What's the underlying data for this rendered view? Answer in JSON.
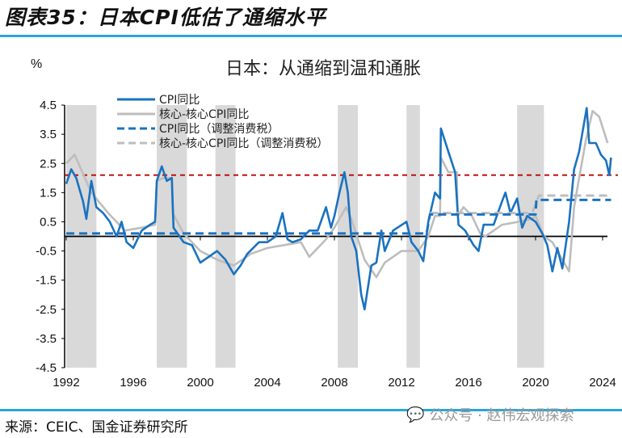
{
  "figure_title": "图表35：日本CPI低估了通缩水平",
  "source": "来源：CEIC、国金证券研究所",
  "watermark": "公众号 · 赵伟宏观探索",
  "colors": {
    "blue": "#1a72c0",
    "gray": "#bdbdbd",
    "red_ref": "#c00000",
    "band": "#d9d9d9",
    "rule": "#2aa6d4"
  },
  "chart_data": {
    "type": "line",
    "title": "日本：从通缩到温和通胀",
    "ylabel": "%",
    "ylim": [
      -4.5,
      4.5
    ],
    "yticks": [
      "4.5",
      "3.5",
      "2.5",
      "1.5",
      "0.5",
      "-0.5",
      "-1.5",
      "-2.5",
      "-3.5",
      "-4.5"
    ],
    "xlim": [
      1992,
      2024.6
    ],
    "xticks": [
      "1992",
      "1996",
      "2000",
      "2004",
      "2008",
      "2012",
      "2016",
      "2020",
      "2024"
    ],
    "reference_line": 2.1,
    "shaded_periods": [
      [
        1992.0,
        1993.8
      ],
      [
        1997.4,
        1999.2
      ],
      [
        2000.9,
        2002.1
      ],
      [
        2008.2,
        2009.4
      ],
      [
        2012.3,
        2013.1
      ],
      [
        2018.9,
        2020.5
      ]
    ],
    "legend_placement": "top-left",
    "series": [
      {
        "name": "CPI同比",
        "style": "solid",
        "color": "#1a72c0",
        "points": [
          [
            1992.0,
            1.8
          ],
          [
            1992.3,
            2.3
          ],
          [
            1992.6,
            2.0
          ],
          [
            1993.0,
            1.2
          ],
          [
            1993.2,
            0.6
          ],
          [
            1993.5,
            1.9
          ],
          [
            1993.8,
            1.0
          ],
          [
            1994.2,
            0.8
          ],
          [
            1994.6,
            0.5
          ],
          [
            1995.0,
            0.0
          ],
          [
            1995.3,
            0.5
          ],
          [
            1995.6,
            -0.2
          ],
          [
            1996.0,
            -0.4
          ],
          [
            1996.5,
            0.2
          ],
          [
            1997.0,
            0.4
          ],
          [
            1997.3,
            0.5
          ],
          [
            1997.4,
            1.9
          ],
          [
            1997.7,
            2.4
          ],
          [
            1998.0,
            1.9
          ],
          [
            1998.3,
            2.0
          ],
          [
            1998.4,
            0.3
          ],
          [
            1999.0,
            -0.2
          ],
          [
            1999.5,
            -0.3
          ],
          [
            2000.0,
            -0.9
          ],
          [
            2000.5,
            -0.7
          ],
          [
            2001.0,
            -0.5
          ],
          [
            2001.5,
            -0.8
          ],
          [
            2002.0,
            -1.3
          ],
          [
            2002.4,
            -1.0
          ],
          [
            2002.8,
            -0.6
          ],
          [
            2003.5,
            -0.2
          ],
          [
            2004.0,
            -0.2
          ],
          [
            2004.5,
            0.0
          ],
          [
            2004.9,
            0.8
          ],
          [
            2005.2,
            -0.1
          ],
          [
            2005.5,
            -0.2
          ],
          [
            2006.0,
            -0.1
          ],
          [
            2006.5,
            0.2
          ],
          [
            2007.0,
            0.2
          ],
          [
            2007.5,
            1.0
          ],
          [
            2007.8,
            0.3
          ],
          [
            2008.0,
            0.7
          ],
          [
            2008.3,
            1.5
          ],
          [
            2008.6,
            2.2
          ],
          [
            2008.8,
            1.5
          ],
          [
            2009.0,
            0.0
          ],
          [
            2009.3,
            -0.5
          ],
          [
            2009.6,
            -2.0
          ],
          [
            2009.8,
            -2.5
          ],
          [
            2010.2,
            -1.0
          ],
          [
            2010.5,
            -0.9
          ],
          [
            2010.8,
            0.2
          ],
          [
            2011.0,
            -0.5
          ],
          [
            2011.5,
            0.2
          ],
          [
            2012.3,
            0.5
          ],
          [
            2012.6,
            -0.2
          ],
          [
            2013.0,
            -0.5
          ],
          [
            2013.3,
            -0.85
          ],
          [
            2013.6,
            0.5
          ],
          [
            2014.0,
            1.5
          ],
          [
            2014.3,
            1.3
          ],
          [
            2014.35,
            3.7
          ],
          [
            2014.8,
            2.9
          ],
          [
            2015.2,
            2.2
          ],
          [
            2015.4,
            0.4
          ],
          [
            2015.8,
            0.2
          ],
          [
            2016.3,
            -0.3
          ],
          [
            2016.6,
            -0.5
          ],
          [
            2016.9,
            0.4
          ],
          [
            2017.5,
            0.4
          ],
          [
            2018.0,
            1.2
          ],
          [
            2018.2,
            1.5
          ],
          [
            2018.5,
            0.8
          ],
          [
            2018.9,
            1.3
          ],
          [
            2019.2,
            0.3
          ],
          [
            2019.5,
            0.7
          ],
          [
            2020.0,
            0.5
          ],
          [
            2020.4,
            0.1
          ],
          [
            2020.7,
            -0.3
          ],
          [
            2021.0,
            -1.2
          ],
          [
            2021.3,
            -0.4
          ],
          [
            2021.6,
            -1.1
          ],
          [
            2022.0,
            0.5
          ],
          [
            2022.3,
            2.3
          ],
          [
            2022.6,
            2.9
          ],
          [
            2023.05,
            4.4
          ],
          [
            2023.2,
            3.2
          ],
          [
            2023.6,
            3.2
          ],
          [
            2023.9,
            2.8
          ],
          [
            2024.2,
            2.6
          ],
          [
            2024.4,
            2.1
          ],
          [
            2024.5,
            2.7
          ]
        ]
      },
      {
        "name": "核心-核心CPI同比",
        "style": "solid",
        "color": "#bdbdbd",
        "points": [
          [
            1992.0,
            2.5
          ],
          [
            1992.5,
            2.8
          ],
          [
            1993.5,
            1.5
          ],
          [
            1994.5,
            0.8
          ],
          [
            1995.5,
            0.2
          ],
          [
            1996.5,
            0.3
          ],
          [
            1997.3,
            0.4
          ],
          [
            1997.4,
            1.9
          ],
          [
            1997.8,
            2.0
          ],
          [
            1998.3,
            2.0
          ],
          [
            1998.35,
            0.8
          ],
          [
            1999.0,
            0.1
          ],
          [
            2000.0,
            -0.5
          ],
          [
            2001.0,
            -0.8
          ],
          [
            2002.0,
            -1.0
          ],
          [
            2003.0,
            -0.6
          ],
          [
            2004.0,
            -0.4
          ],
          [
            2005.0,
            -0.3
          ],
          [
            2006.0,
            -0.2
          ],
          [
            2006.5,
            -0.7
          ],
          [
            2007.5,
            -0.1
          ],
          [
            2008.0,
            0.3
          ],
          [
            2008.7,
            1.0
          ],
          [
            2009.0,
            0.6
          ],
          [
            2009.8,
            -0.8
          ],
          [
            2010.5,
            -1.4
          ],
          [
            2011.0,
            -0.9
          ],
          [
            2012.0,
            -0.5
          ],
          [
            2013.0,
            -0.5
          ],
          [
            2013.6,
            0.0
          ],
          [
            2014.0,
            0.7
          ],
          [
            2014.3,
            0.7
          ],
          [
            2014.35,
            2.7
          ],
          [
            2014.8,
            2.2
          ],
          [
            2015.3,
            2.2
          ],
          [
            2015.35,
            0.7
          ],
          [
            2015.7,
            1.0
          ],
          [
            2016.2,
            0.7
          ],
          [
            2016.7,
            0.1
          ],
          [
            2017.0,
            0.0
          ],
          [
            2017.5,
            0.2
          ],
          [
            2018.0,
            0.4
          ],
          [
            2019.0,
            0.5
          ],
          [
            2019.8,
            0.6
          ],
          [
            2020.0,
            0.7
          ],
          [
            2020.5,
            0.0
          ],
          [
            2021.0,
            -0.2
          ],
          [
            2021.5,
            -0.7
          ],
          [
            2022.0,
            -1.2
          ],
          [
            2022.3,
            1.0
          ],
          [
            2022.6,
            2.0
          ],
          [
            2023.0,
            3.3
          ],
          [
            2023.4,
            4.3
          ],
          [
            2023.8,
            4.1
          ],
          [
            2024.3,
            3.2
          ]
        ]
      },
      {
        "name": "CPI同比（调整消费税）",
        "style": "dashed",
        "color": "#1a72c0",
        "points": [
          [
            1992.0,
            0.1
          ],
          [
            2013.5,
            0.1
          ],
          [
            2013.7,
            0.75
          ],
          [
            2020.0,
            0.75
          ],
          [
            2020.05,
            1.25
          ],
          [
            2024.5,
            1.25
          ]
        ]
      },
      {
        "name": "核心-核心CPI同比（调整消费税）",
        "style": "dashed",
        "color": "#bdbdbd",
        "points": [
          [
            2013.7,
            0.8
          ],
          [
            2019.8,
            0.8
          ],
          [
            2020.2,
            1.4
          ],
          [
            2024.5,
            1.4
          ]
        ]
      }
    ]
  }
}
